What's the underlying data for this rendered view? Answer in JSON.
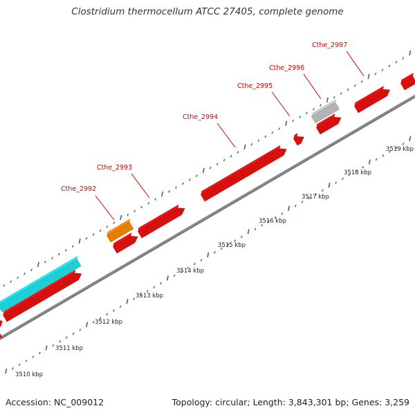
{
  "title": "Clostridium thermocellum ATCC 27405, complete genome",
  "footer": {
    "accession": "Accession: NC_009012",
    "summary": "Topology: circular; Length: 3,843,301 bp; Genes: 3,259"
  },
  "colors": {
    "backbone": "#888888",
    "tick": "#2a7a2a",
    "gene_red": "#ee1111",
    "gene_cyan": "#22e6ee",
    "gene_orange": "#ff8c00",
    "gene_gray": "#c8c8c8",
    "label": "#d00000"
  },
  "scale": {
    "ticks": [
      {
        "label": "3510 kbp"
      },
      {
        "label": "3511 kbp"
      },
      {
        "label": "3512 kbp"
      },
      {
        "label": "3513 kbp"
      },
      {
        "label": "3514 kbp"
      },
      {
        "label": "3515 kbp"
      },
      {
        "label": "3516 kbp"
      },
      {
        "label": "3517 kbp"
      },
      {
        "label": "3518 kbp"
      },
      {
        "label": "3519 kbp"
      }
    ]
  },
  "genes": [
    {
      "id": "g_left_top",
      "track": "upper",
      "color": "gene_red",
      "label": ""
    },
    {
      "id": "g_cyan",
      "track": "upper",
      "color": "gene_cyan",
      "label": ""
    },
    {
      "id": "g_left_red",
      "track": "lower",
      "color": "gene_red",
      "label": ""
    },
    {
      "id": "g_far_left",
      "track": "lower",
      "color": "gene_red",
      "label": ""
    },
    {
      "id": "cthe_2992",
      "track": "upper",
      "color": "gene_orange",
      "label": "Cthe_2992"
    },
    {
      "id": "g_2992b",
      "track": "lower",
      "color": "gene_red",
      "label": ""
    },
    {
      "id": "cthe_2993",
      "track": "lower",
      "color": "gene_red",
      "label": "Cthe_2993"
    },
    {
      "id": "cthe_2994",
      "track": "lower",
      "color": "gene_red",
      "label": "Cthe_2994"
    },
    {
      "id": "cthe_2995",
      "track": "lower",
      "color": "gene_red",
      "label": "Cthe_2995"
    },
    {
      "id": "cthe_2996",
      "track": "upper",
      "color": "gene_gray",
      "label": "Cthe_2996"
    },
    {
      "id": "g_2996b",
      "track": "lower",
      "color": "gene_red",
      "label": ""
    },
    {
      "id": "cthe_2997",
      "track": "lower",
      "color": "gene_red",
      "label": "Cthe_2997"
    },
    {
      "id": "g_right_edge",
      "track": "lower",
      "color": "gene_red",
      "label": ""
    }
  ]
}
